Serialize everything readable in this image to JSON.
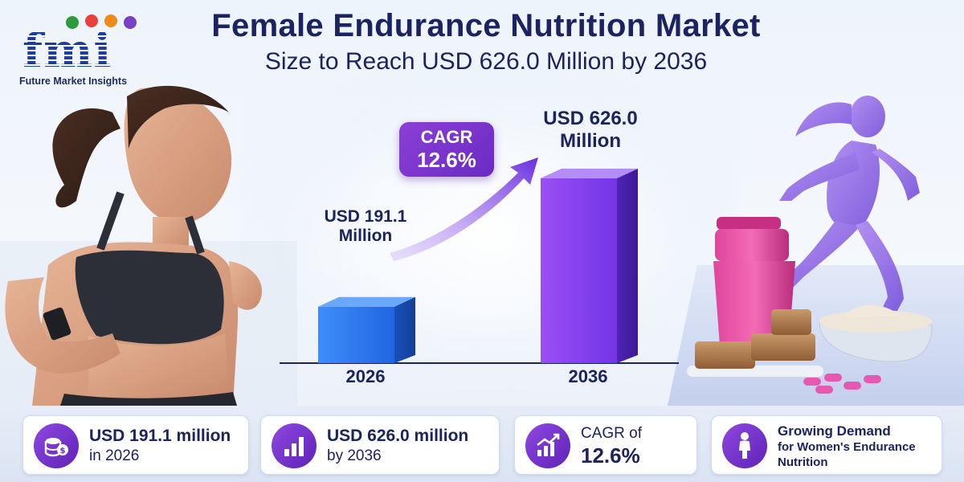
{
  "brand": {
    "logo_text": "fmi",
    "name": "Future Market Insights",
    "dot_colors": [
      "#2e9a3e",
      "#e8403a",
      "#f08a1c",
      "#7a3fc2"
    ]
  },
  "header": {
    "title": "Female Endurance Nutrition Market",
    "subtitle": "Size to Reach USD 626.0 Million by 2036"
  },
  "chart_data": {
    "type": "bar",
    "categories": [
      "2026",
      "2036"
    ],
    "values": [
      191.1,
      626.0
    ],
    "unit": "USD Million",
    "ylim": [
      0,
      680
    ],
    "bar_labels": [
      {
        "line1": "USD 191.1",
        "line2": "Million"
      },
      {
        "line1": "USD 626.0",
        "line2": "Million"
      }
    ],
    "cagr": {
      "label": "CAGR",
      "value": "12.6%"
    },
    "colors": {
      "bar_2026": "#2f7ff0",
      "bar_2036": "#7d3ff0",
      "arrow": "#7a3fe0"
    }
  },
  "cards": [
    {
      "line1": "USD 191.1 million",
      "line2": "in 2026",
      "icon": "coins-icon"
    },
    {
      "line1": "USD 626.0 million",
      "line2": "by 2036",
      "icon": "bar-chart-icon"
    },
    {
      "line1": "CAGR of",
      "line2": "12.6%",
      "icon": "growth-chart-icon"
    },
    {
      "line1": "Growing Demand",
      "line2": "for Women's Endurance",
      "line3": "Nutrition",
      "icon": "woman-icon"
    }
  ]
}
